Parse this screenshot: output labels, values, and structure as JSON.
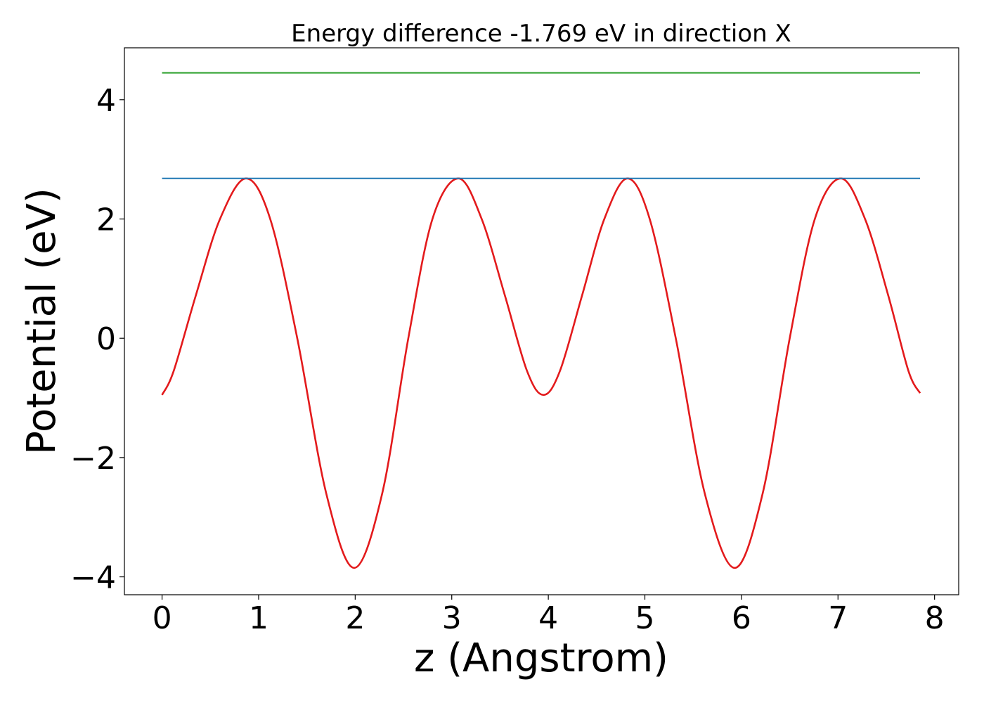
{
  "chart_data": {
    "type": "line",
    "title": "Energy difference -1.769 eV in direction X",
    "xlabel": "z (Angstrom)",
    "ylabel": "Potential (eV)",
    "xlim": [
      -0.39,
      8.25
    ],
    "ylim": [
      -4.3,
      4.87
    ],
    "xticks": [
      0,
      1,
      2,
      3,
      4,
      5,
      6,
      7,
      8
    ],
    "xtick_labels": [
      "0",
      "1",
      "2",
      "3",
      "4",
      "5",
      "6",
      "7",
      "8"
    ],
    "yticks": [
      -4,
      -2,
      0,
      2,
      4
    ],
    "ytick_labels": [
      "−4",
      "−2",
      "0",
      "2",
      "4"
    ],
    "grid": false,
    "series": [
      {
        "color": "#e31a1c",
        "kind": "curve",
        "x_range": [
          0,
          7.85
        ],
        "points": [
          [
            0.0,
            -0.95
          ],
          [
            0.12,
            -0.55
          ],
          [
            0.35,
            0.72
          ],
          [
            0.6,
            2.0
          ],
          [
            0.87,
            2.68
          ],
          [
            1.12,
            2.0
          ],
          [
            1.4,
            0.0
          ],
          [
            1.7,
            -2.6
          ],
          [
            1.99,
            -3.85
          ],
          [
            2.28,
            -2.6
          ],
          [
            2.55,
            0.0
          ],
          [
            2.8,
            2.0
          ],
          [
            3.07,
            2.68
          ],
          [
            3.31,
            2.0
          ],
          [
            3.55,
            0.72
          ],
          [
            3.78,
            -0.55
          ],
          [
            3.95,
            -0.95
          ],
          [
            4.12,
            -0.55
          ],
          [
            4.35,
            0.72
          ],
          [
            4.58,
            2.0
          ],
          [
            4.82,
            2.68
          ],
          [
            5.05,
            2.0
          ],
          [
            5.32,
            0.0
          ],
          [
            5.62,
            -2.6
          ],
          [
            5.93,
            -3.85
          ],
          [
            6.22,
            -2.6
          ],
          [
            6.5,
            0.0
          ],
          [
            6.76,
            2.0
          ],
          [
            7.03,
            2.68
          ],
          [
            7.28,
            2.0
          ],
          [
            7.52,
            0.72
          ],
          [
            7.73,
            -0.55
          ],
          [
            7.85,
            -0.92
          ]
        ]
      },
      {
        "color": "#1f77b4",
        "kind": "hline",
        "x_range": [
          0,
          7.85
        ],
        "y": 2.68
      },
      {
        "color": "#2ca02c",
        "kind": "hline",
        "x_range": [
          0,
          7.85
        ],
        "y": 4.45
      }
    ],
    "colors": {
      "axes": "#000000",
      "background": "#ffffff"
    }
  }
}
